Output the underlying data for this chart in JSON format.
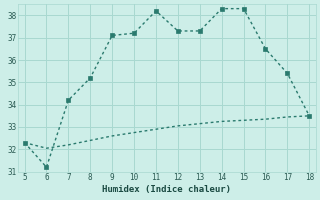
{
  "xlabel": "Humidex (Indice chaleur)",
  "x_main": [
    5,
    6,
    7,
    8,
    9,
    10,
    11,
    12,
    13,
    14,
    15,
    16,
    17,
    18
  ],
  "y_main": [
    32.3,
    31.2,
    34.2,
    35.2,
    37.1,
    37.2,
    38.2,
    37.3,
    37.3,
    38.3,
    38.3,
    36.5,
    35.4,
    33.5
  ],
  "x_flat": [
    5,
    6,
    7,
    8,
    9,
    10,
    11,
    12,
    13,
    14,
    15,
    16,
    17,
    18
  ],
  "y_flat": [
    32.3,
    32.05,
    32.2,
    32.4,
    32.6,
    32.75,
    32.9,
    33.05,
    33.15,
    33.25,
    33.3,
    33.35,
    33.45,
    33.5
  ],
  "line_color": "#2a7a6e",
  "bg_color": "#cdeee8",
  "grid_color": "#a8d8d0",
  "ylim": [
    31,
    38.5
  ],
  "xlim": [
    4.7,
    18.3
  ],
  "yticks": [
    31,
    32,
    33,
    34,
    35,
    36,
    37,
    38
  ],
  "xticks": [
    5,
    6,
    7,
    8,
    9,
    10,
    11,
    12,
    13,
    14,
    15,
    16,
    17,
    18
  ],
  "markersize": 2.5,
  "linewidth": 1.0
}
